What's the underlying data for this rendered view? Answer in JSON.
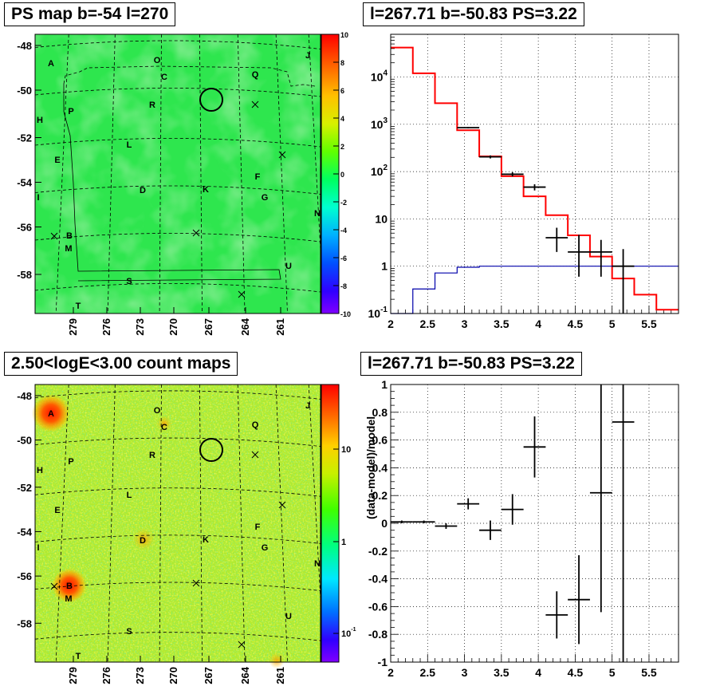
{
  "panels": {
    "tl_title": "PS map b=-54 l=270",
    "tr_title": "l=267.71 b=-50.83 PS=3.22",
    "bl_title": "2.50<logE<3.00 count maps",
    "br_title": "l=267.71 b=-50.83 PS=3.22"
  },
  "sky_maps": {
    "lat_ticks": [
      "-48",
      "-50",
      "-52",
      "-54",
      "-56",
      "-58"
    ],
    "lon_ticks": [
      "279",
      "276",
      "273",
      "270",
      "267",
      "264",
      "261"
    ],
    "sources": [
      "A",
      "O",
      "J",
      "C",
      "Q",
      "R",
      "P",
      "H",
      "L",
      "E",
      "F",
      "G",
      "D",
      "K",
      "I",
      "N",
      "B",
      "M",
      "U",
      "S",
      "T"
    ],
    "ps_colorbar_labels": [
      "10",
      "8",
      "6",
      "4",
      "2",
      "0",
      "-2",
      "-4",
      "-6",
      "-8",
      "-10"
    ],
    "count_colorbar_labels": [
      "10",
      "1",
      "10-1"
    ]
  },
  "chart_data": [
    {
      "type": "histogram",
      "title": "l=267.71 b=-50.83 PS=3.22",
      "xlabel": "",
      "ylabel": "",
      "xlim": [
        2,
        5.9
      ],
      "ylim": [
        0.1,
        80000
      ],
      "log_y": true,
      "grid": true,
      "x_tick_labels": [
        "2",
        "2.5",
        "3",
        "3.5",
        "4",
        "4.5",
        "5",
        "5.5"
      ],
      "y_tick_labels": [
        "10-1",
        "1",
        "10",
        "10^2",
        "10^3",
        "10^4"
      ],
      "bin_edges": [
        2,
        2.3,
        2.6,
        2.9,
        3.2,
        3.5,
        3.8,
        4.1,
        4.4,
        4.7,
        5.0,
        5.3,
        5.6,
        5.9
      ],
      "series": [
        {
          "color": "#ff0000",
          "values": [
            42000,
            12000,
            2800,
            750,
            210,
            80,
            30,
            12,
            4.5,
            1.6,
            0.55,
            0.25,
            0.12
          ]
        },
        {
          "color": "#0000aa",
          "values": [
            0.1,
            0.33,
            0.72,
            0.95,
            1.0,
            1.0,
            1.0,
            1.0,
            1.0,
            1.0,
            1.0,
            1.0,
            1.0
          ]
        }
      ],
      "points": [
        {
          "x": 3.05,
          "y": 850,
          "xerr": 0.15,
          "yerr_lo": 30,
          "yerr_hi": 30
        },
        {
          "x": 3.35,
          "y": 205,
          "xerr": 0.15,
          "yerr_lo": 15,
          "yerr_hi": 15
        },
        {
          "x": 3.65,
          "y": 88,
          "xerr": 0.15,
          "yerr_lo": 9,
          "yerr_hi": 9
        },
        {
          "x": 3.95,
          "y": 47,
          "xerr": 0.15,
          "yerr_lo": 7,
          "yerr_hi": 7
        },
        {
          "x": 4.25,
          "y": 4,
          "xerr": 0.15,
          "yerr_lo": 2,
          "yerr_hi": 2.5
        },
        {
          "x": 4.55,
          "y": 2,
          "xerr": 0.15,
          "yerr_lo": 1.4,
          "yerr_hi": 2.6
        },
        {
          "x": 4.85,
          "y": 2,
          "xerr": 0.15,
          "yerr_lo": 1.4,
          "yerr_hi": 1.6
        },
        {
          "x": 5.15,
          "y": 1,
          "xerr": 0.15,
          "yerr_lo": 0.9,
          "yerr_hi": 1.3
        }
      ]
    },
    {
      "type": "scatter",
      "title": "l=267.71 b=-50.83 PS=3.22",
      "xlabel": "",
      "ylabel": "(data-model)/model",
      "xlim": [
        2,
        5.9
      ],
      "ylim": [
        -1,
        1
      ],
      "grid": true,
      "x_tick_labels": [
        "2",
        "2.5",
        "3",
        "3.5",
        "4",
        "4.5",
        "5",
        "5.5"
      ],
      "y_tick_labels": [
        "1",
        "0.8",
        "0.6",
        "0.4",
        "0.2",
        "0",
        "-0.2",
        "-0.4",
        "-0.6",
        "-0.8",
        "-1"
      ],
      "points": [
        {
          "x": 2.15,
          "y": 0.01,
          "xerr": 0.15,
          "yerr": 0.01
        },
        {
          "x": 2.45,
          "y": 0.01,
          "xerr": 0.15,
          "yerr": 0.01
        },
        {
          "x": 2.75,
          "y": -0.02,
          "xerr": 0.15,
          "yerr": 0.02
        },
        {
          "x": 3.05,
          "y": 0.14,
          "xerr": 0.15,
          "yerr": 0.04
        },
        {
          "x": 3.35,
          "y": -0.05,
          "xerr": 0.15,
          "yerr": 0.07
        },
        {
          "x": 3.65,
          "y": 0.1,
          "xerr": 0.15,
          "yerr": 0.11
        },
        {
          "x": 3.95,
          "y": 0.55,
          "xerr": 0.15,
          "yerr": 0.22
        },
        {
          "x": 4.25,
          "y": -0.66,
          "xerr": 0.15,
          "yerr": 0.17
        },
        {
          "x": 4.55,
          "y": -0.55,
          "xerr": 0.15,
          "yerr": 0.32
        },
        {
          "x": 4.85,
          "y": 0.22,
          "xerr": 0.15,
          "yerr": 0.86
        },
        {
          "x": 5.15,
          "y": 0.73,
          "xerr": 0.15,
          "yerr": 1.9
        }
      ]
    }
  ]
}
